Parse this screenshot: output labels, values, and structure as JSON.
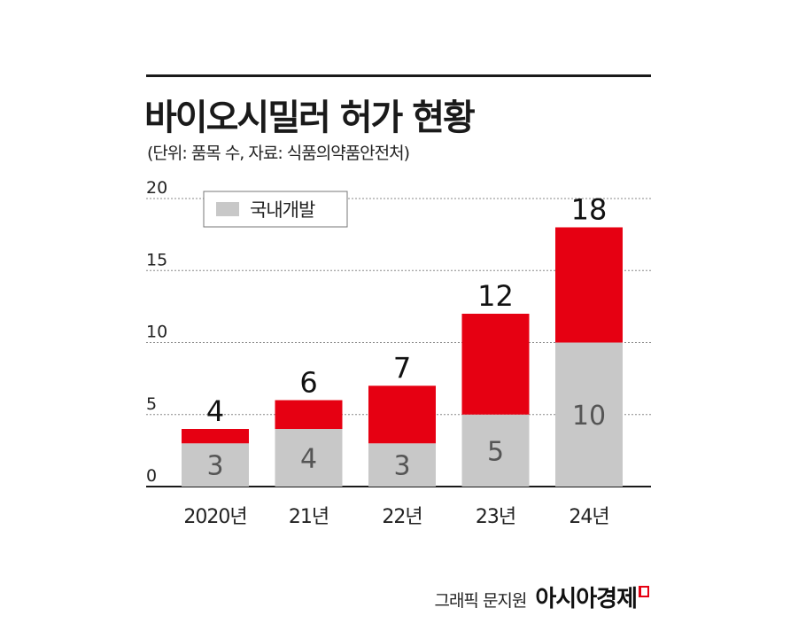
{
  "header": {
    "title": "바이오시밀러 허가 현황",
    "subtitle": "(단위: 품목 수, 자료: 식품의약품안전처)"
  },
  "credit": {
    "text": "그래픽 문지원",
    "brand": "아시아경제"
  },
  "colors": {
    "domestic": "#c8c8c8",
    "other": "#e60012",
    "grid": "#888888",
    "axis": "#1a1a1a"
  },
  "chart_data": {
    "type": "bar",
    "stacked": true,
    "categories": [
      "2020년",
      "21년",
      "22년",
      "23년",
      "24년"
    ],
    "series": [
      {
        "name": "국내개발",
        "values": [
          3,
          4,
          3,
          5,
          10
        ]
      },
      {
        "name": "",
        "values": [
          1,
          2,
          4,
          7,
          8
        ]
      }
    ],
    "totals": [
      4,
      6,
      7,
      12,
      18
    ],
    "yticks": [
      0,
      5,
      10,
      15,
      20
    ],
    "ylim": [
      0,
      20
    ],
    "grid": true,
    "legend": "top-left"
  }
}
